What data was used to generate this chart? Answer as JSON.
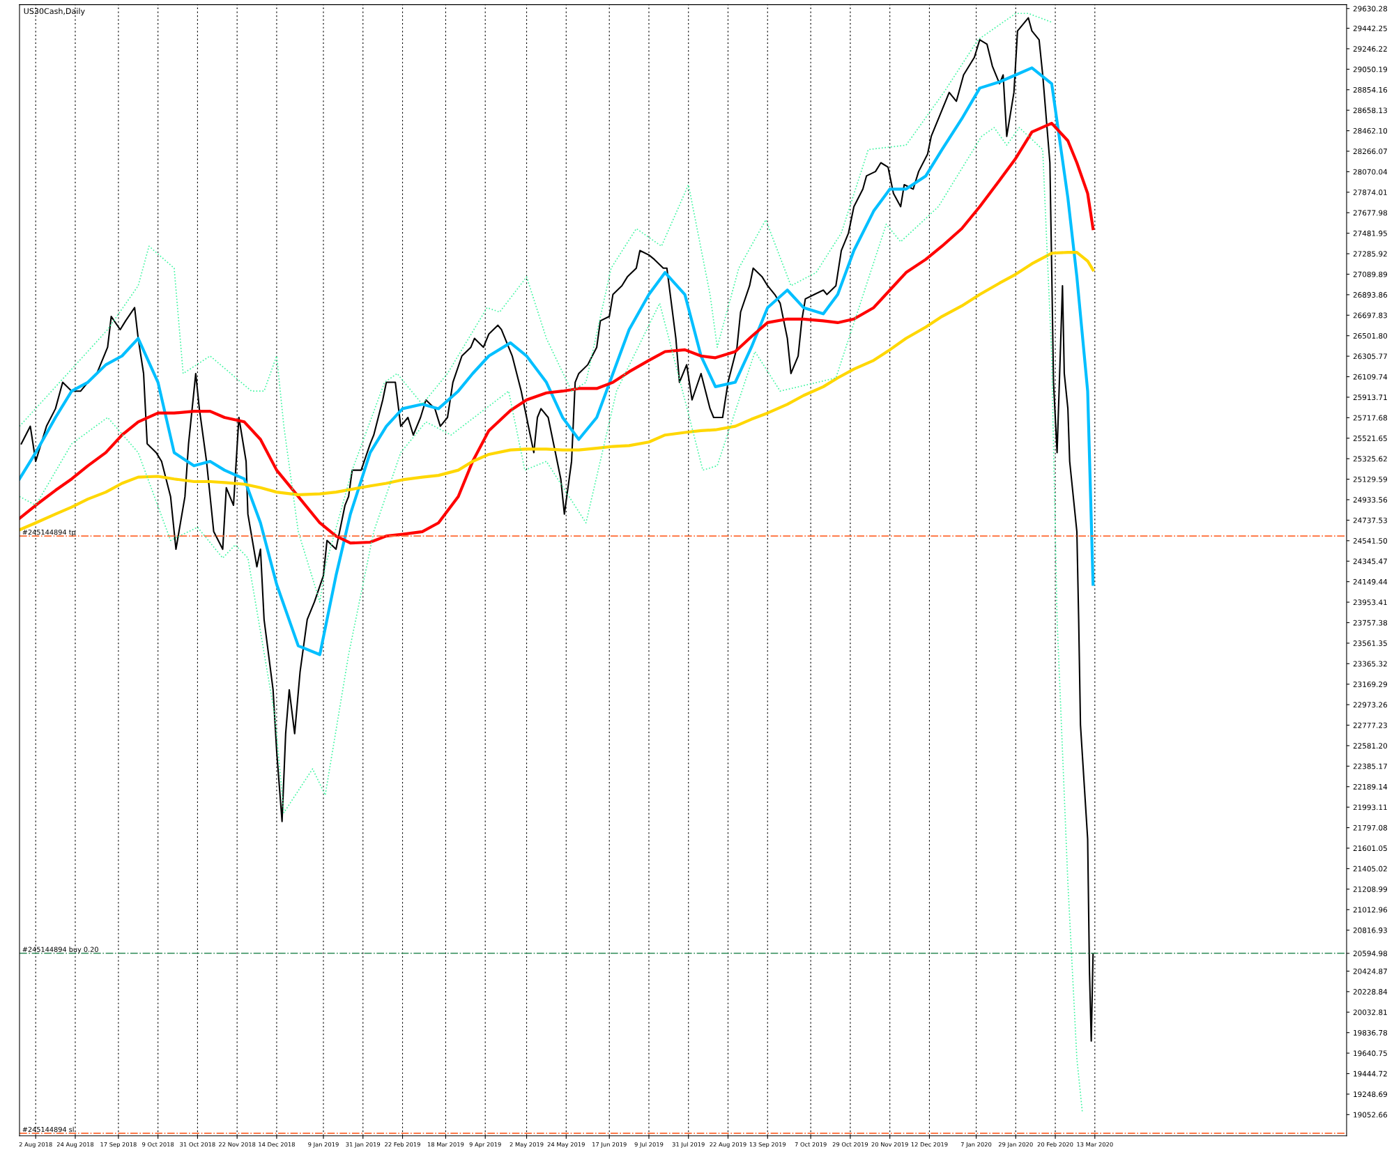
{
  "chart_data": {
    "type": "line",
    "title": "US30Cash,Daily",
    "xlim": [
      "2018-07-24",
      "2020-07-31"
    ],
    "ylim": [
      18850,
      29668
    ],
    "xticks": [
      {
        "value": "2018-08-02",
        "label": "2 Aug 2018"
      },
      {
        "value": "2018-08-24",
        "label": "24 Aug 2018"
      },
      {
        "value": "2018-09-17",
        "label": "17 Sep 2018"
      },
      {
        "value": "2018-10-09",
        "label": "9 Oct 2018"
      },
      {
        "value": "2018-10-31",
        "label": "31 Oct 2018"
      },
      {
        "value": "2018-11-22",
        "label": "22 Nov 2018"
      },
      {
        "value": "2018-12-14",
        "label": "14 Dec 2018"
      },
      {
        "value": "2019-01-09",
        "label": "9 Jan 2019"
      },
      {
        "value": "2019-01-31",
        "label": "31 Jan 2019"
      },
      {
        "value": "2019-02-22",
        "label": "22 Feb 2019"
      },
      {
        "value": "2019-03-18",
        "label": "18 Mar 2019"
      },
      {
        "value": "2019-04-09",
        "label": "9 Apr 2019"
      },
      {
        "value": "2019-05-02",
        "label": "2 May 2019"
      },
      {
        "value": "2019-05-24",
        "label": "24 May 2019"
      },
      {
        "value": "2019-06-17",
        "label": "17 Jun 2019"
      },
      {
        "value": "2019-07-09",
        "label": "9 Jul 2019"
      },
      {
        "value": "2019-07-31",
        "label": "31 Jul 2019"
      },
      {
        "value": "2019-08-22",
        "label": "22 Aug 2019"
      },
      {
        "value": "2019-09-13",
        "label": "13 Sep 2019"
      },
      {
        "value": "2019-10-07",
        "label": "7 Oct 2019"
      },
      {
        "value": "2019-10-29",
        "label": "29 Oct 2019"
      },
      {
        "value": "2019-11-20",
        "label": "20 Nov 2019"
      },
      {
        "value": "2019-12-12",
        "label": "12 Dec 2019"
      },
      {
        "value": "2020-01-07",
        "label": "7 Jan 2020"
      },
      {
        "value": "2020-01-29",
        "label": "29 Jan 2020"
      },
      {
        "value": "2020-02-20",
        "label": "20 Feb 2020"
      },
      {
        "value": "2020-03-13",
        "label": "13 Mar 2020"
      }
    ],
    "yticks": [
      19052.66,
      19248.69,
      19444.72,
      19640.75,
      19836.78,
      20032.81,
      20228.84,
      20424.87,
      20594.98,
      20816.93,
      21012.96,
      21208.99,
      21405.02,
      21601.05,
      21797.08,
      21993.11,
      22189.14,
      22385.17,
      {
        "value": 22581.2,
        "label": "22581.20"
      },
      22777.23,
      22973.26,
      23169.29,
      23365.32,
      23561.35,
      23757.38,
      23953.41,
      24149.44,
      24345.47,
      {
        "value": 24541.5,
        "label": "24541.50"
      },
      24737.53,
      24933.56,
      25129.59,
      25325.62,
      25521.65,
      25717.68,
      25913.71,
      26109.74,
      26305.77,
      {
        "value": 26501.8,
        "label": "26501.80"
      },
      26697.83,
      26893.86,
      27089.89,
      27285.92,
      27481.95,
      27677.98,
      27874.01,
      28070.04,
      28266.07,
      {
        "value": 28462.1,
        "label": "28462.10"
      },
      28658.13,
      28854.16,
      29050.19,
      29246.22,
      29442.25,
      29630.28
    ],
    "grid": "x",
    "tick_labels": "xy",
    "x": [
      "2018-07-24",
      "2018-08-02",
      "2018-08-13",
      "2018-08-22",
      "2018-08-31",
      "2018-09-10",
      "2018-09-19",
      "2018-09-28",
      "2018-10-09",
      "2018-10-18",
      "2018-10-29",
      "2018-11-07",
      "2018-11-15",
      "2018-11-26",
      "2018-12-05",
      "2018-12-14",
      "2018-12-26",
      "2019-01-07",
      "2019-01-16",
      "2019-01-24",
      "2019-02-04",
      "2019-02-13",
      "2019-02-22",
      "2019-03-05",
      "2019-03-14",
      "2019-03-25",
      "2019-04-02",
      "2019-04-11",
      "2019-04-23",
      "2019-05-02",
      "2019-05-13",
      "2019-05-22",
      "2019-05-31",
      "2019-06-10",
      "2019-06-19",
      "2019-06-28",
      "2019-07-09",
      "2019-07-18",
      "2019-07-29",
      "2019-08-07",
      "2019-08-15",
      "2019-08-26",
      "2019-09-04",
      "2019-09-13",
      "2019-09-24",
      "2019-10-03",
      "2019-10-14",
      "2019-10-22",
      "2019-10-31",
      "2019-11-11",
      "2019-11-20",
      "2019-11-29",
      "2019-12-10",
      "2019-12-19",
      "2019-12-30",
      "2020-01-09",
      "2020-01-20",
      "2020-01-29",
      "2020-02-07",
      "2020-02-18",
      "2020-02-27",
      "2020-03-03",
      "2020-03-09",
      "2020-03-12"
    ],
    "series": [
      {
        "color": "#000000",
        "line_style": "solid",
        "x": [
          "2018-07-25",
          "2018-07-30",
          "2018-08-02",
          "2018-08-08",
          "2018-08-13",
          "2018-08-17",
          "2018-08-22",
          "2018-08-27",
          "2018-08-31",
          "2018-09-05",
          "2018-09-11",
          "2018-09-13",
          "2018-09-18",
          "2018-09-21",
          "2018-09-26",
          "2018-09-28",
          "2018-10-01",
          "2018-10-03",
          "2018-10-08",
          "2018-10-11",
          "2018-10-16",
          "2018-10-19",
          "2018-10-24",
          "2018-10-26",
          "2018-10-30",
          "2018-11-01",
          "2018-11-05",
          "2018-11-09",
          "2018-11-14",
          "2018-11-16",
          "2018-11-20",
          "2018-11-23",
          "2018-11-27",
          "2018-11-28",
          "2018-12-03",
          "2018-12-05",
          "2018-12-07",
          "2018-12-12",
          "2018-12-14",
          "2018-12-17",
          "2018-12-19",
          "2018-12-21",
          "2018-12-24",
          "2018-12-27",
          "2018-12-31",
          "2019-01-04",
          "2019-01-09",
          "2019-01-11",
          "2019-01-16",
          "2019-01-21",
          "2019-01-23",
          "2019-01-25",
          "2019-01-30",
          "2019-02-04",
          "2019-02-06",
          "2019-02-11",
          "2019-02-13",
          "2019-02-18",
          "2019-02-21",
          "2019-02-25",
          "2019-02-28",
          "2019-03-04",
          "2019-03-07",
          "2019-03-12",
          "2019-03-15",
          "2019-03-19",
          "2019-03-22",
          "2019-03-27",
          "2019-04-01",
          "2019-04-03",
          "2019-04-08",
          "2019-04-11",
          "2019-04-16",
          "2019-04-18",
          "2019-04-24",
          "2019-04-29",
          "2019-05-02",
          "2019-05-06",
          "2019-05-08",
          "2019-05-10",
          "2019-05-14",
          "2019-05-17",
          "2019-05-21",
          "2019-05-23",
          "2019-05-27",
          "2019-05-29",
          "2019-05-31",
          "2019-06-05",
          "2019-06-10",
          "2019-06-12",
          "2019-06-17",
          "2019-06-19",
          "2019-06-24",
          "2019-06-27",
          "2019-07-02",
          "2019-07-04",
          "2019-07-09",
          "2019-07-12",
          "2019-07-17",
          "2019-07-19",
          "2019-07-24",
          "2019-07-26",
          "2019-07-30",
          "2019-08-02",
          "2019-08-07",
          "2019-08-12",
          "2019-08-14",
          "2019-08-19",
          "2019-08-22",
          "2019-08-27",
          "2019-08-29",
          "2019-09-03",
          "2019-09-05",
          "2019-09-10",
          "2019-09-13",
          "2019-09-17",
          "2019-09-20",
          "2019-09-24",
          "2019-09-26",
          "2019-09-30",
          "2019-10-02",
          "2019-10-04",
          "2019-10-09",
          "2019-10-14",
          "2019-10-16",
          "2019-10-21",
          "2019-10-24",
          "2019-10-28",
          "2019-10-31",
          "2019-11-05",
          "2019-11-07",
          "2019-11-12",
          "2019-11-15",
          "2019-11-19",
          "2019-11-22",
          "2019-11-26",
          "2019-11-28",
          "2019-12-03",
          "2019-12-06",
          "2019-12-11",
          "2019-12-13",
          "2019-12-18",
          "2019-12-23",
          "2019-12-27",
          "2019-12-31",
          "2020-01-06",
          "2020-01-09",
          "2020-01-13",
          "2020-01-16",
          "2020-01-20",
          "2020-01-22",
          "2020-01-24",
          "2020-01-28",
          "2020-01-30",
          "2020-02-03",
          "2020-02-05",
          "2020-02-07",
          "2020-02-11",
          "2020-02-13",
          "2020-02-17",
          "2020-02-18",
          "2020-02-19",
          "2020-02-21",
          "2020-02-24",
          "2020-02-25",
          "2020-02-27",
          "2020-02-28",
          "2020-03-03",
          "2020-03-04",
          "2020-03-05",
          "2020-03-09",
          "2020-03-10",
          "2020-03-11",
          "2020-03-12"
        ],
        "values": [
          25468,
          25636,
          25300,
          25636,
          25804,
          26056,
          25972,
          25972,
          26056,
          26140,
          26392,
          26686,
          26560,
          26644,
          26770,
          26476,
          26140,
          25468,
          25384,
          25300,
          24964,
          24460,
          24964,
          25468,
          26140,
          25804,
          25300,
          24628,
          24460,
          25048,
          24880,
          25720,
          25300,
          24796,
          24292,
          24460,
          23788,
          23116,
          22528,
          21856,
          22696,
          23116,
          22696,
          23284,
          23788,
          23956,
          24208,
          24544,
          24460,
          24880,
          24964,
          25216,
          25216,
          25468,
          25552,
          25888,
          26056,
          26056,
          25636,
          25720,
          25552,
          25720,
          25888,
          25804,
          25636,
          25720,
          26056,
          26308,
          26392,
          26476,
          26392,
          26518,
          26602,
          26560,
          26308,
          25972,
          25720,
          25384,
          25720,
          25804,
          25720,
          25468,
          25132,
          24796,
          25300,
          26056,
          26140,
          26224,
          26392,
          26644,
          26686,
          26896,
          26980,
          27064,
          27148,
          27316,
          27274,
          27232,
          27148,
          27148,
          26476,
          26056,
          26224,
          25888,
          26140,
          25804,
          25720,
          25720,
          26056,
          26392,
          26728,
          26980,
          27148,
          27064,
          26980,
          26896,
          26812,
          26476,
          26140,
          26308,
          26644,
          26854,
          26896,
          26938,
          26896,
          26980,
          27316,
          27484,
          27736,
          27904,
          28030,
          28072,
          28156,
          28114,
          27862,
          27736,
          27946,
          27904,
          28072,
          28240,
          28408,
          28618,
          28828,
          28744,
          28996,
          29164,
          29332,
          29290,
          29080,
          28912,
          28996,
          28408,
          28828,
          29416,
          29500,
          29542,
          29416,
          29332,
          28996,
          28156,
          27148,
          26056,
          25384,
          26980,
          26140,
          25804,
          25300,
          24628,
          23788,
          22780,
          21688,
          20428,
          19756,
          20590
        ]
      },
      {
        "color": "#00bfff",
        "line_style": "solid",
        "values": [
          25132,
          25384,
          25720,
          25972,
          26056,
          26224,
          26308,
          26476,
          26056,
          25384,
          25258,
          25300,
          25216,
          25132,
          24712,
          24124,
          23536,
          23452,
          24208,
          24796,
          25384,
          25636,
          25804,
          25846,
          25804,
          25972,
          26140,
          26308,
          26434,
          26308,
          26056,
          25720,
          25510,
          25720,
          26140,
          26560,
          26896,
          27106,
          26896,
          26308,
          26014,
          26056,
          26392,
          26770,
          26938,
          26770,
          26711,
          26896,
          27316,
          27694,
          27904,
          27904,
          28030,
          28282,
          28576,
          28870,
          28929,
          28996,
          29063,
          28912,
          27820,
          27064,
          25972,
          24124
        ]
      },
      {
        "color": "#ff0000",
        "line_style": "solid",
        "values": [
          24754,
          24880,
          25023,
          25132,
          25258,
          25384,
          25552,
          25678,
          25762,
          25762,
          25779,
          25779,
          25720,
          25678,
          25510,
          25216,
          24964,
          24712,
          24586,
          24519,
          24527,
          24586,
          24603,
          24628,
          24712,
          24964,
          25300,
          25594,
          25787,
          25888,
          25955,
          25972,
          25997,
          25997,
          26056,
          26157,
          26266,
          26350,
          26367,
          26308,
          26291,
          26350,
          26493,
          26627,
          26661,
          26661,
          26644,
          26627,
          26661,
          26770,
          26938,
          27106,
          27232,
          27358,
          27526,
          27736,
          27988,
          28198,
          28450,
          28534,
          28366,
          28156,
          27862,
          27526
        ]
      },
      {
        "color": "#ffd700",
        "line_style": "solid",
        "values": [
          24645,
          24712,
          24796,
          24863,
          24939,
          25006,
          25090,
          25149,
          25157,
          25132,
          25107,
          25107,
          25098,
          25082,
          25048,
          25006,
          24981,
          24989,
          25006,
          25031,
          25065,
          25090,
          25124,
          25149,
          25166,
          25216,
          25300,
          25367,
          25409,
          25418,
          25418,
          25409,
          25409,
          25426,
          25443,
          25451,
          25485,
          25552,
          25577,
          25594,
          25602,
          25636,
          25703,
          25762,
          25846,
          25930,
          26014,
          26098,
          26182,
          26266,
          26367,
          26476,
          26585,
          26686,
          26787,
          26896,
          27005,
          27089,
          27190,
          27291,
          27299,
          27299,
          27215,
          27131
        ]
      },
      {
        "color": "#3cf5a0",
        "line_style": "dotted",
        "x": [
          "2018-07-24",
          "2018-08-22",
          "2018-09-11",
          "2018-09-28",
          "2018-10-04",
          "2018-10-18",
          "2018-10-23",
          "2018-11-07",
          "2018-11-30",
          "2018-12-07",
          "2018-12-14",
          "2018-12-18",
          "2018-12-26",
          "2019-01-07",
          "2019-01-10",
          "2019-01-25",
          "2019-02-12",
          "2019-02-19",
          "2019-03-05",
          "2019-03-19",
          "2019-04-10",
          "2019-04-17",
          "2019-05-02",
          "2019-05-13",
          "2019-05-27",
          "2019-06-04",
          "2019-06-18",
          "2019-07-02",
          "2019-07-16",
          "2019-07-31",
          "2019-08-12",
          "2019-08-16",
          "2019-08-28",
          "2019-09-12",
          "2019-09-26",
          "2019-10-10",
          "2019-10-24",
          "2019-11-08",
          "2019-11-29",
          "2019-12-20",
          "2020-01-08",
          "2020-01-29",
          "2020-02-05",
          "2020-02-18"
        ],
        "values": [
          25636,
          26182,
          26560,
          26980,
          27358,
          27148,
          26140,
          26308,
          25972,
          25972,
          26308,
          25636,
          24628,
          23956,
          24292,
          25216,
          26056,
          26140,
          25846,
          26140,
          26770,
          26728,
          27064,
          26476,
          25972,
          26056,
          27148,
          27526,
          27358,
          27946,
          26896,
          26392,
          27148,
          27610,
          26980,
          27106,
          27484,
          28282,
          28324,
          28828,
          29332,
          29584,
          29584,
          29500
        ]
      },
      {
        "color": "#3cf5a0",
        "line_style": "dotted",
        "x": [
          "2018-07-24",
          "2018-08-02",
          "2018-08-22",
          "2018-09-11",
          "2018-09-28",
          "2018-10-16",
          "2018-10-31",
          "2018-11-14",
          "2018-11-21",
          "2018-11-28",
          "2018-12-13",
          "2018-12-18",
          "2019-01-03",
          "2019-01-10",
          "2019-01-23",
          "2019-02-06",
          "2019-02-21",
          "2019-03-07",
          "2019-03-21",
          "2019-04-22",
          "2019-05-01",
          "2019-05-13",
          "2019-06-04",
          "2019-06-21",
          "2019-07-15",
          "2019-07-29",
          "2019-08-08",
          "2019-08-16",
          "2019-09-06",
          "2019-09-20",
          "2019-10-21",
          "2019-11-18",
          "2019-11-26",
          "2019-12-17",
          "2020-01-10",
          "2020-01-17",
          "2020-01-24",
          "2020-01-31",
          "2020-02-13",
          "2020-02-18",
          "2020-02-21",
          "2020-02-27",
          "2020-03-03",
          "2020-03-06"
        ],
        "values": [
          24964,
          24880,
          25468,
          25720,
          25384,
          24544,
          24670,
          24376,
          24502,
          24376,
          22864,
          21940,
          22360,
          22108,
          23452,
          24628,
          25384,
          25678,
          25552,
          25972,
          25216,
          25300,
          24712,
          25972,
          26812,
          25888,
          25216,
          25258,
          26350,
          25972,
          26098,
          27568,
          27400,
          27736,
          28408,
          28492,
          28324,
          28492,
          28282,
          26308,
          23788,
          21268,
          19588,
          19084
        ]
      }
    ],
    "ref_lines": [
      {
        "axis": "y",
        "value": 24586,
        "label": "#245144894 tp",
        "color": "#ff6a33",
        "line_style": "dashdot"
      },
      {
        "axis": "y",
        "value": 20596,
        "label": "#245144894 buy 0.20",
        "color": "#2e8b57",
        "line_style": "dashdot"
      },
      {
        "axis": "y",
        "value": 18874,
        "label": "#245144894 sl",
        "color": "#ff6a33",
        "line_style": "dashdot"
      }
    ]
  }
}
